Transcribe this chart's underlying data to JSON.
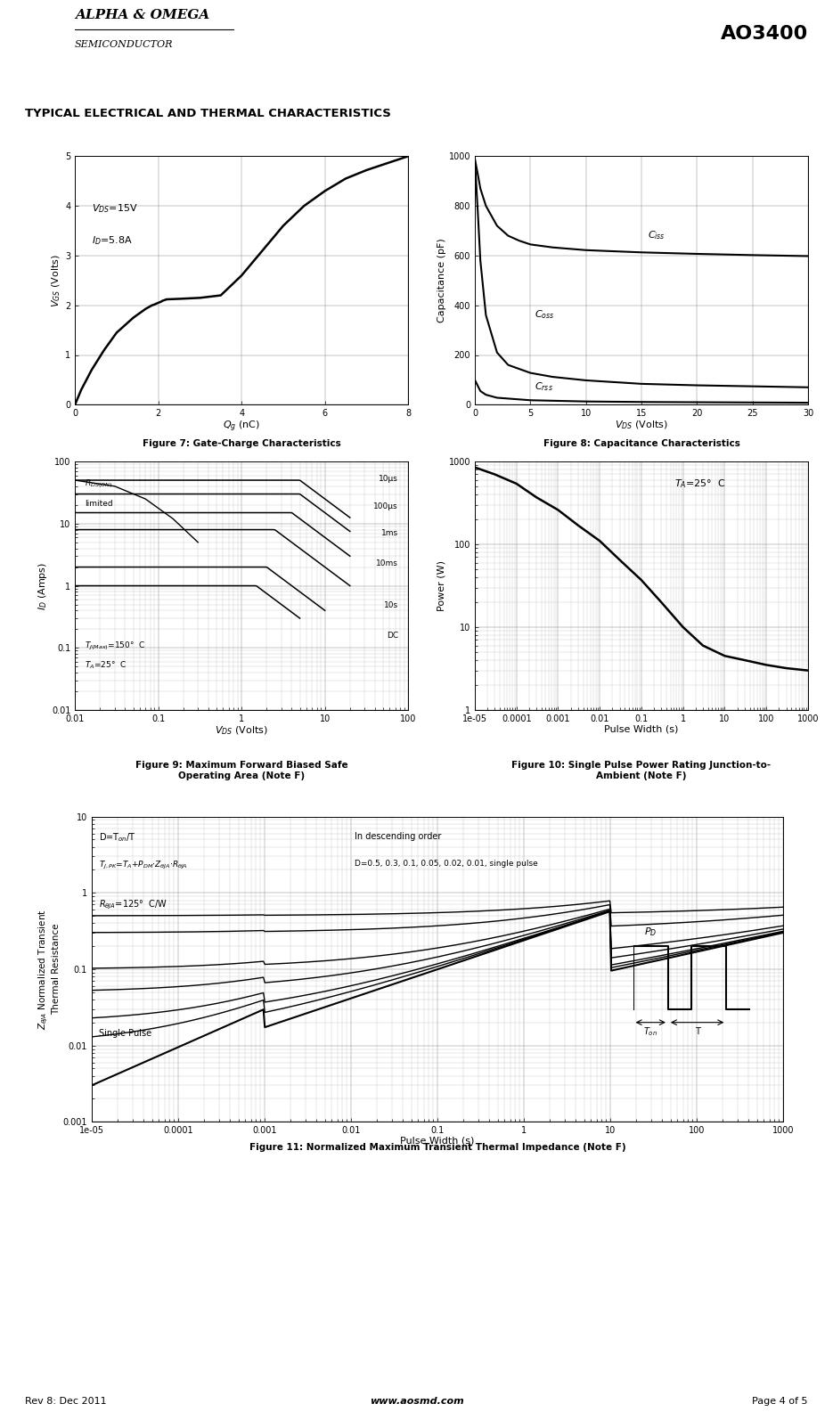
{
  "title": "AO3400",
  "company_line1": "ALPHA & OMEGA",
  "company_line2": "SEMICONDUCTOR",
  "section_title": "TYPICAL ELECTRICAL AND THERMAL CHARACTERISTICS",
  "footer_left": "Rev 8: Dec 2011",
  "footer_center": "www.aosmd.com",
  "footer_right": "Page 4 of 5",
  "bar_color_blue": "#1a3a6b",
  "bar_color_green": "#2d7a2d",
  "logo_bg": "#1a4a9c",
  "fig7_title": "Figure 7: Gate-Charge Characteristics",
  "fig8_title": "Figure 8: Capacitance Characteristics",
  "fig9_title": "Figure 9: Maximum Forward Biased Safe\nOperating Area (Note F)",
  "fig10_title": "Figure 10: Single Pulse Power Rating Junction-to-\nAmbient (Note F)",
  "fig11_title": "Figure 11: Normalized Maximum Transient Thermal Impedance (Note F)"
}
